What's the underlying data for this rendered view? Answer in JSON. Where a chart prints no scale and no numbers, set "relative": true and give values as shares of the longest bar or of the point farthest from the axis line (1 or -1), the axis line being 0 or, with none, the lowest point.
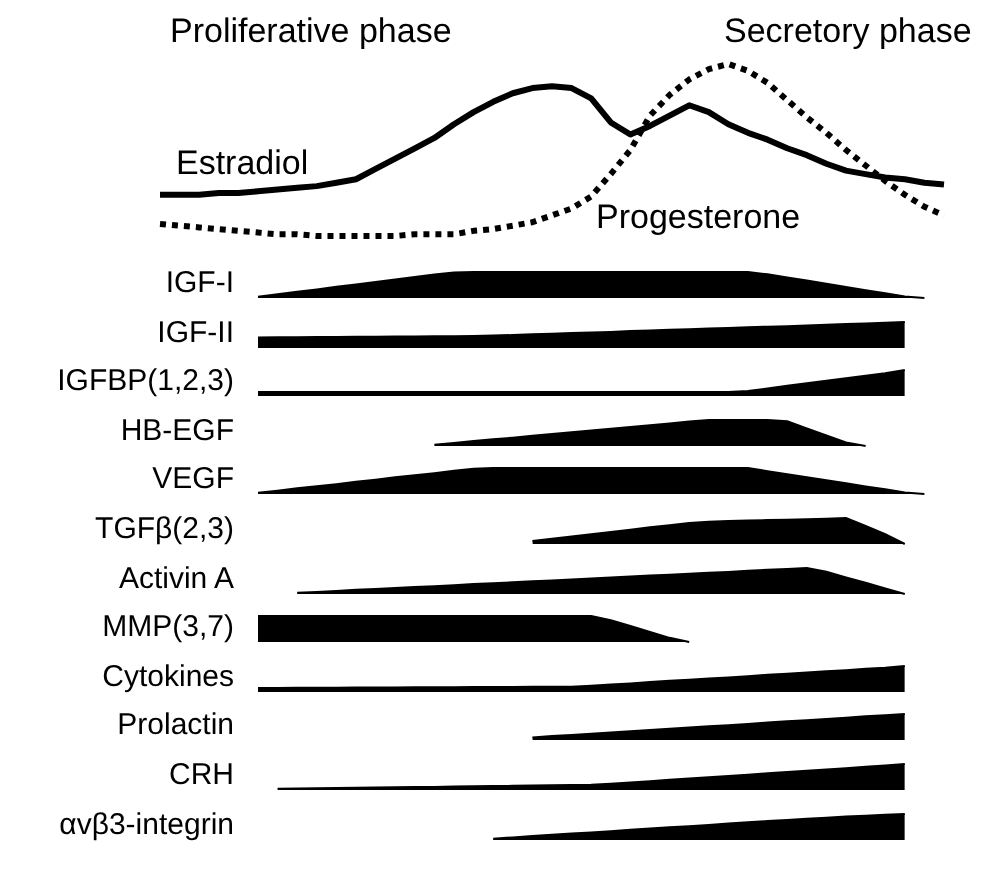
{
  "chart_data": [
    {
      "type": "line",
      "relative": true,
      "tick_labels": false,
      "marker": "none",
      "annotations": [
        "Proliferative phase",
        "Secretory phase"
      ],
      "categories": [
        null,
        null,
        null,
        null,
        null,
        null,
        null,
        null,
        null,
        null,
        null,
        null,
        null,
        null,
        null,
        null,
        null,
        null,
        null,
        null,
        null,
        null,
        null,
        null,
        null,
        null,
        null,
        null,
        null,
        null,
        null,
        null,
        null,
        null,
        null,
        null,
        null,
        null,
        null,
        null,
        null
      ],
      "series": [
        {
          "name": "Estradiol",
          "color": "#000000",
          "line_style": "solid",
          "values": [
            0.24,
            0.24,
            0.24,
            0.25,
            0.25,
            0.26,
            0.27,
            0.28,
            0.29,
            0.31,
            0.33,
            0.39,
            0.45,
            0.51,
            0.57,
            0.65,
            0.72,
            0.78,
            0.83,
            0.86,
            0.87,
            0.86,
            0.8,
            0.66,
            0.59,
            0.64,
            0.7,
            0.76,
            0.72,
            0.65,
            0.6,
            0.56,
            0.51,
            0.47,
            0.42,
            0.38,
            0.36,
            0.34,
            0.33,
            0.31,
            0.3
          ]
        },
        {
          "name": "Progesterone",
          "color": "#000000",
          "line_style": "dotted",
          "values": [
            0.07,
            0.06,
            0.05,
            0.04,
            0.03,
            0.02,
            0.01,
            0.01,
            0,
            0,
            0,
            0,
            0,
            0.01,
            0.01,
            0.01,
            0.03,
            0.04,
            0.06,
            0.08,
            0.12,
            0.16,
            0.23,
            0.36,
            0.5,
            0.7,
            0.82,
            0.91,
            0.97,
            1,
            0.96,
            0.89,
            0.79,
            0.69,
            0.6,
            0.5,
            0.41,
            0.32,
            0.24,
            0.17,
            0.12
          ]
        }
      ]
    },
    {
      "type": "area",
      "ylabel": "IGF-I",
      "relative": true,
      "tick_labels": false,
      "color": "#000000",
      "categories": [
        null,
        null,
        null,
        null,
        null,
        null,
        null,
        null,
        null,
        null,
        null,
        null,
        null,
        null,
        null,
        null,
        null,
        null,
        null,
        null,
        null,
        null,
        null,
        null,
        null,
        null,
        null,
        null,
        null,
        null,
        null,
        null,
        null,
        null,
        null,
        null,
        null,
        null,
        null,
        null,
        null
      ],
      "values": [
        null,
        null,
        null,
        null,
        null,
        0.05,
        0.14,
        0.24,
        0.33,
        0.43,
        0.52,
        0.62,
        0.71,
        0.81,
        0.9,
        0.98,
        1,
        1,
        1,
        1,
        1,
        1,
        1,
        1,
        1,
        1,
        1,
        1,
        1,
        1,
        1,
        0.91,
        0.79,
        0.67,
        0.55,
        0.42,
        0.3,
        0.18,
        0.06,
        0,
        null
      ]
    },
    {
      "type": "area",
      "ylabel": "IGF-II",
      "relative": true,
      "tick_labels": false,
      "color": "#000000",
      "categories": [
        null,
        null,
        null,
        null,
        null,
        null,
        null,
        null,
        null,
        null,
        null,
        null,
        null,
        null,
        null,
        null,
        null,
        null,
        null,
        null,
        null,
        null,
        null,
        null,
        null,
        null,
        null,
        null,
        null,
        null,
        null,
        null,
        null,
        null,
        null,
        null,
        null,
        null,
        null,
        null,
        null
      ],
      "values": [
        null,
        null,
        null,
        null,
        null,
        0.4,
        0.41,
        0.41,
        0.42,
        0.42,
        0.43,
        0.43,
        0.44,
        0.44,
        0.45,
        0.45,
        0.46,
        0.48,
        0.5,
        0.53,
        0.55,
        0.58,
        0.6,
        0.62,
        0.65,
        0.67,
        0.7,
        0.72,
        0.75,
        0.77,
        0.8,
        0.82,
        0.84,
        0.87,
        0.89,
        0.92,
        0.94,
        0.97,
        1,
        null,
        null
      ]
    },
    {
      "type": "area",
      "ylabel": "IGFBP(1,2,3)",
      "relative": true,
      "tick_labels": false,
      "color": "#000000",
      "categories": [
        null,
        null,
        null,
        null,
        null,
        null,
        null,
        null,
        null,
        null,
        null,
        null,
        null,
        null,
        null,
        null,
        null,
        null,
        null,
        null,
        null,
        null,
        null,
        null,
        null,
        null,
        null,
        null,
        null,
        null,
        null,
        null,
        null,
        null,
        null,
        null,
        null,
        null,
        null,
        null,
        null
      ],
      "values": [
        null,
        null,
        null,
        null,
        null,
        0.15,
        0.15,
        0.15,
        0.15,
        0.15,
        0.15,
        0.15,
        0.15,
        0.15,
        0.15,
        0.15,
        0.15,
        0.15,
        0.15,
        0.15,
        0.15,
        0.15,
        0.15,
        0.15,
        0.15,
        0.15,
        0.15,
        0.15,
        0.15,
        0.15,
        0.19,
        0.29,
        0.39,
        0.49,
        0.59,
        0.68,
        0.78,
        0.88,
        1,
        null,
        null
      ]
    },
    {
      "type": "area",
      "ylabel": "HB-EGF",
      "relative": true,
      "tick_labels": false,
      "color": "#000000",
      "categories": [
        null,
        null,
        null,
        null,
        null,
        null,
        null,
        null,
        null,
        null,
        null,
        null,
        null,
        null,
        null,
        null,
        null,
        null,
        null,
        null,
        null,
        null,
        null,
        null,
        null,
        null,
        null,
        null,
        null,
        null,
        null,
        null,
        null,
        null,
        null,
        null,
        null,
        null,
        null,
        null,
        null
      ],
      "values": [
        null,
        null,
        null,
        null,
        null,
        null,
        null,
        null,
        null,
        null,
        null,
        null,
        null,
        null,
        0.05,
        0.12,
        0.19,
        0.26,
        0.32,
        0.39,
        0.46,
        0.53,
        0.6,
        0.66,
        0.73,
        0.8,
        0.87,
        0.94,
        1,
        1,
        1,
        1,
        0.95,
        0.68,
        0.41,
        0.14,
        0,
        null,
        null,
        null,
        null
      ]
    },
    {
      "type": "area",
      "ylabel": "VEGF",
      "relative": true,
      "tick_labels": false,
      "color": "#000000",
      "categories": [
        null,
        null,
        null,
        null,
        null,
        null,
        null,
        null,
        null,
        null,
        null,
        null,
        null,
        null,
        null,
        null,
        null,
        null,
        null,
        null,
        null,
        null,
        null,
        null,
        null,
        null,
        null,
        null,
        null,
        null,
        null,
        null,
        null,
        null,
        null,
        null,
        null,
        null,
        null,
        null,
        null
      ],
      "values": [
        null,
        null,
        null,
        null,
        null,
        0.05,
        0.13,
        0.22,
        0.3,
        0.38,
        0.47,
        0.55,
        0.64,
        0.72,
        0.8,
        0.89,
        0.97,
        1,
        1,
        1,
        1,
        1,
        1,
        1,
        1,
        1,
        1,
        1,
        1,
        1,
        1,
        0.88,
        0.76,
        0.64,
        0.53,
        0.41,
        0.29,
        0.18,
        0.06,
        0,
        null
      ]
    },
    {
      "type": "area",
      "ylabel": "TGFβ(2,3)",
      "relative": true,
      "tick_labels": false,
      "color": "#000000",
      "categories": [
        null,
        null,
        null,
        null,
        null,
        null,
        null,
        null,
        null,
        null,
        null,
        null,
        null,
        null,
        null,
        null,
        null,
        null,
        null,
        null,
        null,
        null,
        null,
        null,
        null,
        null,
        null,
        null,
        null,
        null,
        null,
        null,
        null,
        null,
        null,
        null,
        null,
        null,
        null,
        null,
        null
      ],
      "values": [
        null,
        null,
        null,
        null,
        null,
        null,
        null,
        null,
        null,
        null,
        null,
        null,
        null,
        null,
        null,
        null,
        null,
        null,
        null,
        0.12,
        0.2,
        0.29,
        0.38,
        0.46,
        0.55,
        0.64,
        0.72,
        0.81,
        0.86,
        0.88,
        0.9,
        0.92,
        0.93,
        0.95,
        0.97,
        1,
        0.7,
        0.38,
        0,
        null,
        null
      ]
    },
    {
      "type": "area",
      "ylabel": "Activin A",
      "relative": true,
      "tick_labels": false,
      "color": "#000000",
      "categories": [
        null,
        null,
        null,
        null,
        null,
        null,
        null,
        null,
        null,
        null,
        null,
        null,
        null,
        null,
        null,
        null,
        null,
        null,
        null,
        null,
        null,
        null,
        null,
        null,
        null,
        null,
        null,
        null,
        null,
        null,
        null,
        null,
        null,
        null,
        null,
        null,
        null,
        null,
        null,
        null,
        null
      ],
      "values": [
        null,
        null,
        null,
        null,
        null,
        null,
        null,
        0.05,
        0.08,
        0.12,
        0.16,
        0.19,
        0.23,
        0.27,
        0.3,
        0.34,
        0.38,
        0.41,
        0.45,
        0.49,
        0.52,
        0.56,
        0.6,
        0.63,
        0.67,
        0.71,
        0.74,
        0.78,
        0.82,
        0.85,
        0.89,
        0.93,
        0.96,
        1,
        0.86,
        0.64,
        0.43,
        0.21,
        0,
        null,
        null
      ]
    },
    {
      "type": "area",
      "ylabel": "MMP(3,7)",
      "relative": true,
      "tick_labels": false,
      "color": "#000000",
      "categories": [
        null,
        null,
        null,
        null,
        null,
        null,
        null,
        null,
        null,
        null,
        null,
        null,
        null,
        null,
        null,
        null,
        null,
        null,
        null,
        null,
        null,
        null,
        null,
        null,
        null,
        null,
        null,
        null,
        null,
        null,
        null,
        null,
        null,
        null,
        null,
        null,
        null,
        null,
        null,
        null,
        null
      ],
      "values": [
        null,
        null,
        null,
        null,
        null,
        1,
        1,
        1,
        1,
        1,
        1,
        1,
        1,
        1,
        1,
        1,
        1,
        1,
        1,
        1,
        1,
        1,
        1,
        0.84,
        0.62,
        0.39,
        0.16,
        0,
        null,
        null,
        null,
        null,
        null,
        null,
        null,
        null,
        null,
        null,
        null,
        null,
        null
      ]
    },
    {
      "type": "area",
      "ylabel": "Cytokines",
      "relative": true,
      "tick_labels": false,
      "color": "#000000",
      "categories": [
        null,
        null,
        null,
        null,
        null,
        null,
        null,
        null,
        null,
        null,
        null,
        null,
        null,
        null,
        null,
        null,
        null,
        null,
        null,
        null,
        null,
        null,
        null,
        null,
        null,
        null,
        null,
        null,
        null,
        null,
        null,
        null,
        null,
        null,
        null,
        null,
        null,
        null,
        null,
        null,
        null
      ],
      "values": [
        null,
        null,
        null,
        null,
        null,
        0.15,
        0.15,
        0.16,
        0.16,
        0.16,
        0.17,
        0.17,
        0.17,
        0.18,
        0.18,
        0.18,
        0.19,
        0.19,
        0.19,
        0.2,
        0.2,
        0.2,
        0.24,
        0.29,
        0.33,
        0.38,
        0.43,
        0.47,
        0.52,
        0.56,
        0.61,
        0.66,
        0.7,
        0.75,
        0.8,
        0.84,
        0.89,
        0.93,
        1,
        null,
        null
      ]
    },
    {
      "type": "area",
      "ylabel": "Prolactin",
      "relative": true,
      "tick_labels": false,
      "color": "#000000",
      "categories": [
        null,
        null,
        null,
        null,
        null,
        null,
        null,
        null,
        null,
        null,
        null,
        null,
        null,
        null,
        null,
        null,
        null,
        null,
        null,
        null,
        null,
        null,
        null,
        null,
        null,
        null,
        null,
        null,
        null,
        null,
        null,
        null,
        null,
        null,
        null,
        null,
        null,
        null,
        null,
        null,
        null
      ],
      "values": [
        null,
        null,
        null,
        null,
        null,
        null,
        null,
        null,
        null,
        null,
        null,
        null,
        null,
        null,
        null,
        null,
        null,
        null,
        null,
        0.1,
        0.15,
        0.19,
        0.24,
        0.29,
        0.34,
        0.38,
        0.43,
        0.48,
        0.53,
        0.57,
        0.62,
        0.67,
        0.72,
        0.76,
        0.81,
        0.86,
        0.91,
        0.95,
        1,
        null,
        null
      ]
    },
    {
      "type": "area",
      "ylabel": "CRH",
      "relative": true,
      "tick_labels": false,
      "color": "#000000",
      "categories": [
        null,
        null,
        null,
        null,
        null,
        null,
        null,
        null,
        null,
        null,
        null,
        null,
        null,
        null,
        null,
        null,
        null,
        null,
        null,
        null,
        null,
        null,
        null,
        null,
        null,
        null,
        null,
        null,
        null,
        null,
        null,
        null,
        null,
        null,
        null,
        null,
        null,
        null,
        null,
        null,
        null
      ],
      "values": [
        null,
        null,
        null,
        null,
        null,
        null,
        0.05,
        0.06,
        0.07,
        0.08,
        0.09,
        0.1,
        0.11,
        0.12,
        0.12,
        0.13,
        0.14,
        0.15,
        0.16,
        0.17,
        0.18,
        0.19,
        0.2,
        0.24,
        0.29,
        0.34,
        0.39,
        0.44,
        0.49,
        0.54,
        0.59,
        0.64,
        0.69,
        0.74,
        0.79,
        0.84,
        0.89,
        0.94,
        1,
        null,
        null
      ]
    },
    {
      "type": "area",
      "ylabel": "αvβ3-integrin",
      "relative": true,
      "tick_labels": false,
      "color": "#000000",
      "categories": [
        null,
        null,
        null,
        null,
        null,
        null,
        null,
        null,
        null,
        null,
        null,
        null,
        null,
        null,
        null,
        null,
        null,
        null,
        null,
        null,
        null,
        null,
        null,
        null,
        null,
        null,
        null,
        null,
        null,
        null,
        null,
        null,
        null,
        null,
        null,
        null,
        null,
        null,
        null,
        null,
        null
      ],
      "values": [
        null,
        null,
        null,
        null,
        null,
        null,
        null,
        null,
        null,
        null,
        null,
        null,
        null,
        null,
        null,
        null,
        null,
        0.05,
        0.1,
        0.15,
        0.2,
        0.25,
        0.29,
        0.34,
        0.39,
        0.44,
        0.49,
        0.53,
        0.58,
        0.63,
        0.68,
        0.73,
        0.77,
        0.82,
        0.86,
        0.9,
        0.93,
        0.97,
        1,
        null,
        null
      ]
    }
  ]
}
